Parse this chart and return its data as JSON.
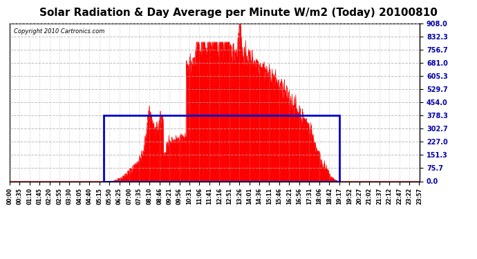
{
  "title": "Solar Radiation & Day Average per Minute W/m2 (Today) 20100810",
  "copyright": "Copyright 2010 Cartronics.com",
  "y_ticks": [
    0.0,
    75.7,
    151.3,
    227.0,
    302.7,
    378.3,
    454.0,
    529.7,
    605.3,
    681.0,
    756.7,
    832.3,
    908.0
  ],
  "y_max": 908.0,
  "y_min": 0.0,
  "bg_color": "#ffffff",
  "plot_bg_color": "#ffffff",
  "fill_color": "#ff0000",
  "line_color": "#ff0000",
  "avg_box_color": "#0000cc",
  "grid_color": "#aaaaaa",
  "title_color": "#000000",
  "avg_value": 378.3,
  "avg_start_x": 16,
  "avg_end_x": 76,
  "num_points": 1440,
  "x_tick_labels": [
    "00:00",
    "00:35",
    "01:10",
    "01:45",
    "02:20",
    "02:55",
    "03:30",
    "04:05",
    "04:40",
    "05:15",
    "05:50",
    "06:25",
    "07:00",
    "07:35",
    "08:10",
    "08:46",
    "09:21",
    "09:56",
    "10:31",
    "11:06",
    "11:41",
    "12:16",
    "12:51",
    "13:26",
    "14:01",
    "14:36",
    "15:11",
    "15:46",
    "16:21",
    "16:56",
    "17:31",
    "18:06",
    "18:42",
    "19:17",
    "19:52",
    "20:27",
    "21:02",
    "21:37",
    "22:12",
    "22:47",
    "23:22",
    "23:57"
  ],
  "x_tick_positions": [
    0,
    35,
    70,
    105,
    140,
    175,
    210,
    245,
    280,
    315,
    350,
    385,
    420,
    455,
    490,
    526,
    561,
    596,
    631,
    666,
    701,
    736,
    771,
    806,
    841,
    876,
    911,
    946,
    981,
    1016,
    1051,
    1086,
    1122,
    1157,
    1192,
    1227,
    1262,
    1297,
    1332,
    1367,
    1402,
    1437
  ]
}
